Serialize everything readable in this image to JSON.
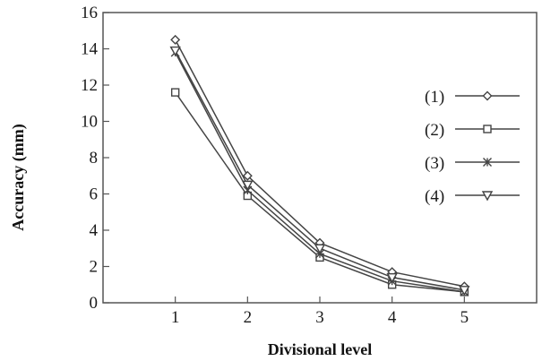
{
  "chart_data": {
    "type": "line",
    "title": "",
    "xlabel": "Divisional level",
    "ylabel": "Accuracy (mm)",
    "x": [
      1,
      2,
      3,
      4,
      5
    ],
    "xlim": [
      0,
      6
    ],
    "ylim": [
      0,
      16
    ],
    "yticks": [
      0,
      2,
      4,
      6,
      8,
      10,
      12,
      14,
      16
    ],
    "xticks": [
      1,
      2,
      3,
      4,
      5
    ],
    "grid": false,
    "legend_position": "right",
    "series": [
      {
        "name": "(1)",
        "marker": "diamond",
        "values": [
          14.5,
          7.0,
          3.3,
          1.7,
          0.9
        ]
      },
      {
        "name": "(2)",
        "marker": "square",
        "values": [
          11.6,
          5.9,
          2.5,
          1.0,
          0.6
        ]
      },
      {
        "name": "(3)",
        "marker": "asterisk",
        "values": [
          13.8,
          6.2,
          2.7,
          1.2,
          0.6
        ]
      },
      {
        "name": "(4)",
        "marker": "triangle-down",
        "values": [
          13.9,
          6.5,
          3.0,
          1.4,
          0.7
        ]
      }
    ],
    "line_color": "#444444"
  }
}
